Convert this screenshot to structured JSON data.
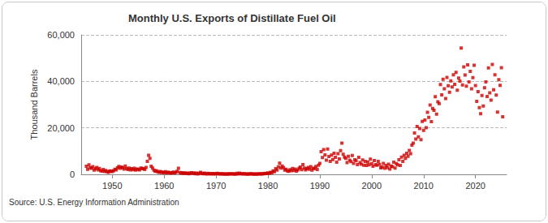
{
  "chart_data": {
    "type": "scatter",
    "title": "Monthly U.S. Exports of Distillate Fuel Oil",
    "y_label": "Thousand Barrels",
    "annotation": "Source: U.S. Energy Information Administration",
    "color": "#cc0000",
    "marker": "square",
    "grid": true,
    "xlim": [
      1944,
      2026
    ],
    "xticks": [
      1950,
      1960,
      1970,
      1980,
      1990,
      2000,
      2010,
      2020
    ],
    "ylim": [
      0,
      60000
    ],
    "yticks": [
      0,
      {
        "value": 20000,
        "label": "20,000"
      },
      {
        "value": 40000,
        "label": "40,000"
      },
      {
        "value": 60000,
        "label": "60,000"
      }
    ],
    "x": [
      1945,
      1945.25,
      1945.5,
      1945.75,
      1946,
      1946.25,
      1946.5,
      1946.75,
      1947,
      1947.25,
      1947.5,
      1947.75,
      1948,
      1948.25,
      1948.5,
      1948.75,
      1949,
      1949.25,
      1949.5,
      1949.75,
      1950,
      1950.25,
      1950.5,
      1950.75,
      1951,
      1951.25,
      1951.5,
      1951.75,
      1952,
      1952.25,
      1952.5,
      1952.75,
      1953,
      1953.25,
      1953.5,
      1953.75,
      1954,
      1954.25,
      1954.5,
      1954.75,
      1955,
      1955.25,
      1955.5,
      1955.75,
      1956,
      1956.25,
      1956.5,
      1956.75,
      1957,
      1957.25,
      1957.5,
      1957.75,
      1958,
      1958.25,
      1958.5,
      1958.75,
      1959,
      1959.25,
      1959.5,
      1959.75,
      1960,
      1960.25,
      1960.5,
      1960.75,
      1961,
      1961.25,
      1961.5,
      1961.75,
      1962,
      1962.25,
      1962.5,
      1962.75,
      1963,
      1963.25,
      1963.5,
      1963.75,
      1964,
      1964.25,
      1964.5,
      1964.75,
      1965,
      1965.25,
      1965.5,
      1965.75,
      1966,
      1966.25,
      1966.5,
      1966.75,
      1967,
      1967.25,
      1967.5,
      1967.75,
      1968,
      1968.25,
      1968.5,
      1968.75,
      1969,
      1969.25,
      1969.5,
      1969.75,
      1970,
      1970.25,
      1970.5,
      1970.75,
      1971,
      1971.25,
      1971.5,
      1971.75,
      1972,
      1972.25,
      1972.5,
      1972.75,
      1973,
      1973.25,
      1973.5,
      1973.75,
      1974,
      1974.25,
      1974.5,
      1974.75,
      1975,
      1975.25,
      1975.5,
      1975.75,
      1976,
      1976.25,
      1976.5,
      1976.75,
      1977,
      1977.25,
      1977.5,
      1977.75,
      1978,
      1978.25,
      1978.5,
      1978.75,
      1979,
      1979.25,
      1979.5,
      1979.75,
      1980,
      1980.25,
      1980.5,
      1980.75,
      1981,
      1981.25,
      1981.5,
      1981.75,
      1982,
      1982.25,
      1982.5,
      1982.75,
      1983,
      1983.25,
      1983.5,
      1983.75,
      1984,
      1984.25,
      1984.5,
      1984.75,
      1985,
      1985.25,
      1985.5,
      1985.75,
      1986,
      1986.25,
      1986.5,
      1986.75,
      1987,
      1987.25,
      1987.5,
      1987.75,
      1988,
      1988.25,
      1988.5,
      1988.75,
      1989,
      1989.25,
      1989.5,
      1989.75,
      1990,
      1990.25,
      1990.5,
      1990.75,
      1991,
      1991.25,
      1991.5,
      1991.75,
      1992,
      1992.25,
      1992.5,
      1992.75,
      1993,
      1993.25,
      1993.5,
      1993.75,
      1994,
      1994.25,
      1994.5,
      1994.75,
      1995,
      1995.25,
      1995.5,
      1995.75,
      1996,
      1996.25,
      1996.5,
      1996.75,
      1997,
      1997.25,
      1997.5,
      1997.75,
      1998,
      1998.25,
      1998.5,
      1998.75,
      1999,
      1999.25,
      1999.5,
      1999.75,
      2000,
      2000.25,
      2000.5,
      2000.75,
      2001,
      2001.25,
      2001.5,
      2001.75,
      2002,
      2002.25,
      2002.5,
      2002.75,
      2003,
      2003.25,
      2003.5,
      2003.75,
      2004,
      2004.25,
      2004.5,
      2004.75,
      2005,
      2005.25,
      2005.5,
      2005.75,
      2006,
      2006.25,
      2006.5,
      2006.75,
      2007,
      2007.25,
      2007.5,
      2007.75,
      2008,
      2008.25,
      2008.5,
      2008.75,
      2009,
      2009.25,
      2009.5,
      2009.75,
      2010,
      2010.25,
      2010.5,
      2010.75,
      2011,
      2011.25,
      2011.5,
      2011.75,
      2012,
      2012.25,
      2012.5,
      2012.75,
      2013,
      2013.25,
      2013.5,
      2013.75,
      2014,
      2014.25,
      2014.5,
      2014.75,
      2015,
      2015.25,
      2015.5,
      2015.75,
      2016,
      2016.25,
      2016.5,
      2016.75,
      2017,
      2017.25,
      2017.5,
      2017.75,
      2018,
      2018.25,
      2018.5,
      2018.75,
      2019,
      2019.25,
      2019.5,
      2019.75,
      2020,
      2020.25,
      2020.5,
      2020.75,
      2021,
      2021.25,
      2021.5,
      2021.75,
      2022,
      2022.25,
      2022.5,
      2022.75,
      2023,
      2023.25,
      2023.5,
      2023.75,
      2024,
      2024.25,
      2024.5,
      2024.75,
      2025,
      2025.25
    ],
    "values": [
      3500,
      2200,
      4100,
      2800,
      2600,
      3300,
      1800,
      2400,
      3000,
      1900,
      2500,
      1600,
      1400,
      2100,
      1200,
      1700,
      1100,
      900,
      1500,
      1300,
      1200,
      1600,
      2200,
      1900,
      2800,
      3400,
      2600,
      3100,
      2900,
      2300,
      3600,
      2500,
      2100,
      2700,
      1900,
      2400,
      2000,
      2600,
      1800,
      2300,
      2200,
      1900,
      2700,
      2500,
      2400,
      2100,
      3000,
      5600,
      8200,
      6900,
      3500,
      2700,
      1800,
      1300,
      1600,
      1100,
      900,
      1200,
      800,
      1000,
      700,
      1100,
      600,
      900,
      800,
      500,
      700,
      1000,
      600,
      900,
      1300,
      2600,
      800,
      500,
      700,
      400,
      600,
      400,
      500,
      300,
      500,
      700,
      400,
      600,
      300,
      500,
      200,
      400,
      900,
      400,
      300,
      500,
      300,
      200,
      400,
      250,
      200,
      350,
      150,
      300,
      250,
      400,
      200,
      300,
      150,
      300,
      100,
      200,
      200,
      100,
      250,
      150,
      300,
      150,
      200,
      100,
      400,
      200,
      500,
      300,
      250,
      150,
      300,
      200,
      100,
      200,
      150,
      250,
      150,
      100,
      200,
      120,
      200,
      150,
      300,
      180,
      300,
      250,
      400,
      350,
      600,
      400,
      900,
      700,
      1500,
      1100,
      2400,
      1800,
      3200,
      4800,
      2700,
      3600,
      2900,
      1800,
      2200,
      1500,
      1300,
      2000,
      1600,
      2500,
      1700,
      2300,
      1400,
      1900,
      2600,
      3100,
      2000,
      4200,
      2700,
      1900,
      2400,
      3000,
      2200,
      3300,
      1800,
      2600,
      2500,
      3400,
      2100,
      3900,
      4700,
      9800,
      7200,
      10600,
      8400,
      6100,
      10900,
      7700,
      5600,
      8300,
      6400,
      9100,
      7300,
      5200,
      8900,
      6600,
      10200,
      13400,
      8600,
      7400,
      6900,
      5100,
      7800,
      6100,
      5500,
      8100,
      4700,
      6300,
      5800,
      4200,
      7300,
      5100,
      4400,
      6200,
      3900,
      5600,
      3800,
      5300,
      4100,
      6500,
      4600,
      3500,
      5900,
      4200,
      3900,
      5600,
      4300,
      2800,
      3100,
      4700,
      2600,
      3800,
      2900,
      4400,
      2300,
      3600,
      3300,
      5200,
      2700,
      4600,
      4100,
      6300,
      3800,
      7400,
      5600,
      8200,
      6900,
      9100,
      7800,
      10300,
      8900,
      12600,
      13400,
      17800,
      15200,
      20600,
      16100,
      19700,
      14900,
      22800,
      18900,
      23400,
      20100,
      26700,
      24500,
      29800,
      22700,
      28300,
      27600,
      33400,
      25900,
      31200,
      30400,
      38600,
      34200,
      40900,
      36800,
      32600,
      41700,
      38100,
      35300,
      40200,
      37600,
      42800,
      38700,
      43900,
      36200,
      41400,
      40100,
      54300,
      38500,
      46200,
      42700,
      37900,
      47100,
      39800,
      44300,
      36800,
      41600,
      46900,
      38200,
      31400,
      35600,
      28700,
      26100,
      33900,
      29400,
      37200,
      39800,
      33500,
      45800,
      35100,
      31900,
      47300,
      36400,
      42800,
      34100,
      26800,
      40700,
      38300,
      45900,
      24800
    ]
  }
}
